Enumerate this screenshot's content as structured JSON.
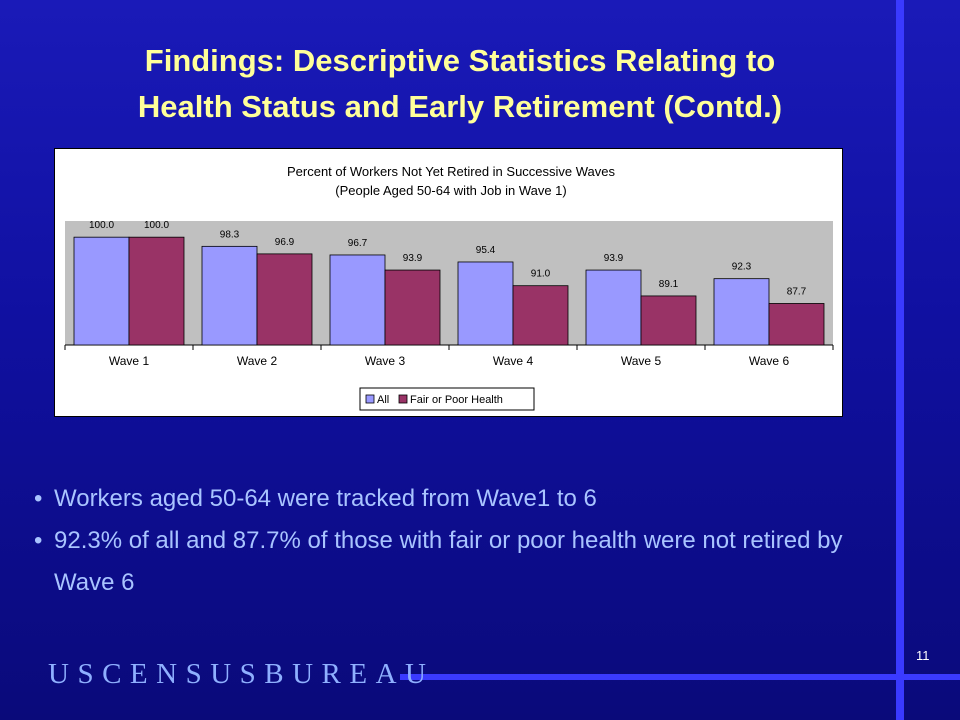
{
  "slide": {
    "title_line1": "Findings:  Descriptive Statistics Relating  to",
    "title_line2": "Health Status and Early Retirement (Contd.)",
    "bullets": [
      {
        "text": "Workers aged 50-64 were tracked from Wave1 to 6"
      },
      {
        "text": "92.3% of all and 87.7% of those with fair or poor health were not retired by Wave 6"
      }
    ],
    "bullet_symbol": "•",
    "page_number": "11",
    "logo_text": "USCENSUSBUREAU"
  },
  "colors": {
    "all": "#9999ff",
    "fair_poor": "#993366",
    "plot_bg": "#c0c0c0",
    "accent_line": "#3a3aff",
    "title": "#ffff99",
    "bullet_text": "#a9c4ff"
  },
  "chart_data": {
    "type": "bar",
    "title": "Percent of Workers Not Yet Retired in Successive Waves",
    "subtitle": "(People Aged 50-64 with Job in Wave 1)",
    "xlabel": "",
    "ylabel": "",
    "categories": [
      "Wave 1",
      "Wave 2",
      "Wave 3",
      "Wave 4",
      "Wave 5",
      "Wave 6"
    ],
    "series": [
      {
        "name": "All",
        "values": [
          100.0,
          98.3,
          96.7,
          95.4,
          93.9,
          92.3
        ]
      },
      {
        "name": "Fair or Poor Health",
        "values": [
          100.0,
          96.9,
          93.9,
          91.0,
          89.1,
          87.7
        ]
      }
    ],
    "ylim": [
      80,
      103
    ],
    "grid": false,
    "legend": "bottom",
    "data_labels": true
  }
}
